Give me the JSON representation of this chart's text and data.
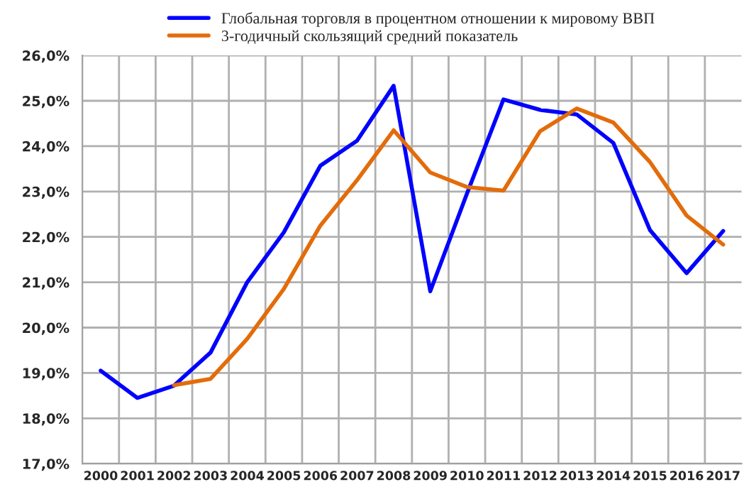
{
  "chart_data": {
    "type": "line",
    "categories": [
      "2000",
      "2001",
      "2002",
      "2003",
      "2004",
      "2005",
      "2006",
      "2007",
      "2008",
      "2009",
      "2010",
      "2011",
      "2012",
      "2013",
      "2014",
      "2015",
      "2016",
      "2017"
    ],
    "series": [
      {
        "name": "Глобальная торговля в процентном отношении к мировому ВВП",
        "color": "#0000ff",
        "values": [
          19.05,
          18.45,
          18.72,
          19.45,
          21.0,
          22.1,
          23.57,
          24.12,
          25.33,
          20.8,
          22.95,
          25.03,
          24.8,
          24.7,
          24.07,
          22.15,
          21.2,
          22.13
        ]
      },
      {
        "name": "3-годичный скользящий средний показатель",
        "color": "#e36c0a",
        "values": [
          null,
          null,
          18.73,
          18.87,
          19.75,
          20.85,
          22.25,
          23.25,
          24.35,
          23.42,
          23.1,
          23.02,
          24.33,
          24.83,
          24.52,
          23.65,
          22.47,
          21.83
        ]
      }
    ],
    "ylim": [
      17,
      26
    ],
    "yticks": [
      {
        "value": 17,
        "label": "17,0%"
      },
      {
        "value": 18,
        "label": "18,0%"
      },
      {
        "value": 19,
        "label": "19,0%"
      },
      {
        "value": 20,
        "label": "20,0%"
      },
      {
        "value": 21,
        "label": "21,0%"
      },
      {
        "value": 22,
        "label": "22,0%"
      },
      {
        "value": 23,
        "label": "23,0%"
      },
      {
        "value": 24,
        "label": "24,0%"
      },
      {
        "value": 25,
        "label": "25,0%"
      },
      {
        "value": 26,
        "label": "26,0%"
      }
    ],
    "grid": true,
    "legend": "top",
    "marker": "none",
    "line_style": "solid"
  }
}
